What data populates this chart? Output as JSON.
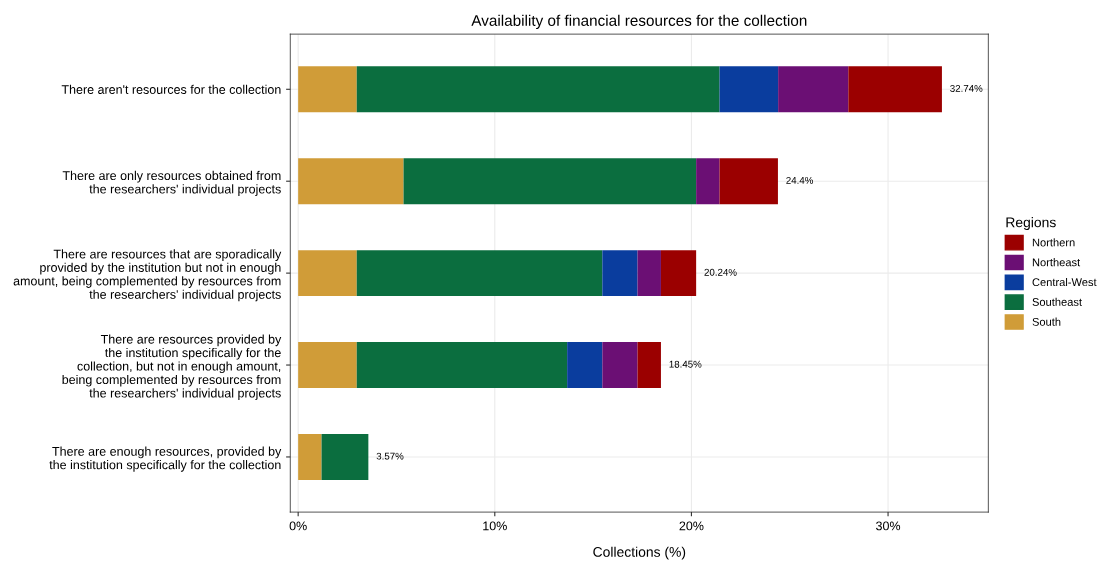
{
  "chart_data": {
    "type": "bar",
    "orientation": "horizontal",
    "stacked": true,
    "title": "Availability of financial resources for the collection",
    "xlabel": "Collections (%)",
    "legend_title": "Regions",
    "legend": "right",
    "grid": true,
    "categories": [
      "There aren't resources for the collection",
      "There are only resources obtained from\nthe researchers' individual projects",
      "There are resources that are sporadically\nprovided by the institution but not in enough\namount, being complemented by resources from\nthe researchers' individual projects",
      "There are resources provided by\nthe institution specifically for the\ncollection, but not in enough amount,\nbeing complemented by resources from\nthe researchers' individual projects",
      "There are enough resources, provided by\nthe institution specifically for the collection"
    ],
    "xlim": [
      -0.4,
      35.1
    ],
    "xticks": [
      {
        "value": 0,
        "label": "0%"
      },
      {
        "value": 10,
        "label": "10%"
      },
      {
        "value": 20,
        "label": "20%"
      },
      {
        "value": 30,
        "label": "30%"
      }
    ],
    "series": [
      {
        "name": "South",
        "color": "#d09c38",
        "values": [
          2.98,
          5.36,
          2.98,
          2.98,
          1.19
        ]
      },
      {
        "name": "Southeast",
        "color": "#0b6e3f",
        "values": [
          18.45,
          14.88,
          12.49,
          10.7,
          2.38
        ]
      },
      {
        "name": "Central-West",
        "color": "#0a3d9e",
        "values": [
          2.98,
          null,
          1.79,
          1.79,
          null
        ]
      },
      {
        "name": "Northeast",
        "color": "#6b0f74",
        "values": [
          3.57,
          1.19,
          1.19,
          1.79,
          null
        ]
      },
      {
        "name": "Northern",
        "color": "#9b0000",
        "values": [
          4.76,
          2.97,
          1.79,
          1.19,
          null
        ]
      }
    ],
    "totals": [
      "32.74%",
      "24.4%",
      "20.24%",
      "18.45%",
      "3.57%"
    ]
  }
}
